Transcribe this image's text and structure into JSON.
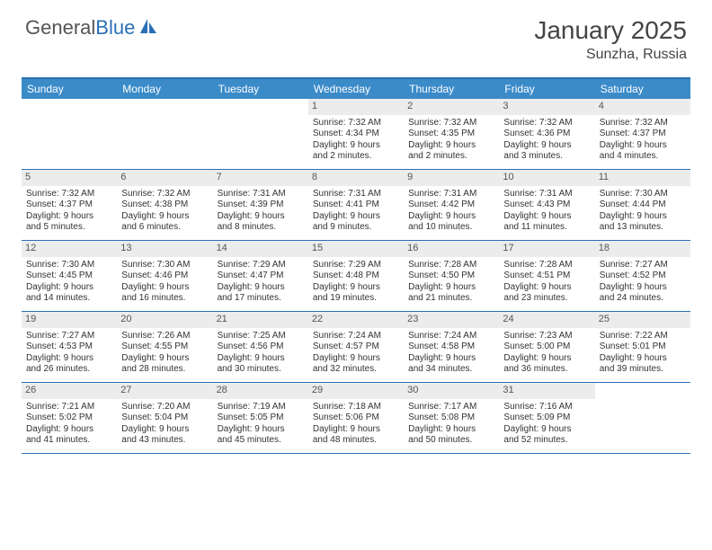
{
  "logo": {
    "word1": "General",
    "word2": "Blue"
  },
  "title": "January 2025",
  "location": "Sunzha, Russia",
  "colors": {
    "header_bg": "#3b8bc9",
    "header_border": "#2a6fb5",
    "cell_num_bg": "#ececec",
    "text": "#333333",
    "logo_gray": "#555555",
    "logo_blue": "#2a6fb5"
  },
  "day_names": [
    "Sunday",
    "Monday",
    "Tuesday",
    "Wednesday",
    "Thursday",
    "Friday",
    "Saturday"
  ],
  "weeks": [
    [
      {
        "n": "",
        "sr": "",
        "ss": "",
        "dl1": "",
        "dl2": ""
      },
      {
        "n": "",
        "sr": "",
        "ss": "",
        "dl1": "",
        "dl2": ""
      },
      {
        "n": "",
        "sr": "",
        "ss": "",
        "dl1": "",
        "dl2": ""
      },
      {
        "n": "1",
        "sr": "Sunrise: 7:32 AM",
        "ss": "Sunset: 4:34 PM",
        "dl1": "Daylight: 9 hours",
        "dl2": "and 2 minutes."
      },
      {
        "n": "2",
        "sr": "Sunrise: 7:32 AM",
        "ss": "Sunset: 4:35 PM",
        "dl1": "Daylight: 9 hours",
        "dl2": "and 2 minutes."
      },
      {
        "n": "3",
        "sr": "Sunrise: 7:32 AM",
        "ss": "Sunset: 4:36 PM",
        "dl1": "Daylight: 9 hours",
        "dl2": "and 3 minutes."
      },
      {
        "n": "4",
        "sr": "Sunrise: 7:32 AM",
        "ss": "Sunset: 4:37 PM",
        "dl1": "Daylight: 9 hours",
        "dl2": "and 4 minutes."
      }
    ],
    [
      {
        "n": "5",
        "sr": "Sunrise: 7:32 AM",
        "ss": "Sunset: 4:37 PM",
        "dl1": "Daylight: 9 hours",
        "dl2": "and 5 minutes."
      },
      {
        "n": "6",
        "sr": "Sunrise: 7:32 AM",
        "ss": "Sunset: 4:38 PM",
        "dl1": "Daylight: 9 hours",
        "dl2": "and 6 minutes."
      },
      {
        "n": "7",
        "sr": "Sunrise: 7:31 AM",
        "ss": "Sunset: 4:39 PM",
        "dl1": "Daylight: 9 hours",
        "dl2": "and 8 minutes."
      },
      {
        "n": "8",
        "sr": "Sunrise: 7:31 AM",
        "ss": "Sunset: 4:41 PM",
        "dl1": "Daylight: 9 hours",
        "dl2": "and 9 minutes."
      },
      {
        "n": "9",
        "sr": "Sunrise: 7:31 AM",
        "ss": "Sunset: 4:42 PM",
        "dl1": "Daylight: 9 hours",
        "dl2": "and 10 minutes."
      },
      {
        "n": "10",
        "sr": "Sunrise: 7:31 AM",
        "ss": "Sunset: 4:43 PM",
        "dl1": "Daylight: 9 hours",
        "dl2": "and 11 minutes."
      },
      {
        "n": "11",
        "sr": "Sunrise: 7:30 AM",
        "ss": "Sunset: 4:44 PM",
        "dl1": "Daylight: 9 hours",
        "dl2": "and 13 minutes."
      }
    ],
    [
      {
        "n": "12",
        "sr": "Sunrise: 7:30 AM",
        "ss": "Sunset: 4:45 PM",
        "dl1": "Daylight: 9 hours",
        "dl2": "and 14 minutes."
      },
      {
        "n": "13",
        "sr": "Sunrise: 7:30 AM",
        "ss": "Sunset: 4:46 PM",
        "dl1": "Daylight: 9 hours",
        "dl2": "and 16 minutes."
      },
      {
        "n": "14",
        "sr": "Sunrise: 7:29 AM",
        "ss": "Sunset: 4:47 PM",
        "dl1": "Daylight: 9 hours",
        "dl2": "and 17 minutes."
      },
      {
        "n": "15",
        "sr": "Sunrise: 7:29 AM",
        "ss": "Sunset: 4:48 PM",
        "dl1": "Daylight: 9 hours",
        "dl2": "and 19 minutes."
      },
      {
        "n": "16",
        "sr": "Sunrise: 7:28 AM",
        "ss": "Sunset: 4:50 PM",
        "dl1": "Daylight: 9 hours",
        "dl2": "and 21 minutes."
      },
      {
        "n": "17",
        "sr": "Sunrise: 7:28 AM",
        "ss": "Sunset: 4:51 PM",
        "dl1": "Daylight: 9 hours",
        "dl2": "and 23 minutes."
      },
      {
        "n": "18",
        "sr": "Sunrise: 7:27 AM",
        "ss": "Sunset: 4:52 PM",
        "dl1": "Daylight: 9 hours",
        "dl2": "and 24 minutes."
      }
    ],
    [
      {
        "n": "19",
        "sr": "Sunrise: 7:27 AM",
        "ss": "Sunset: 4:53 PM",
        "dl1": "Daylight: 9 hours",
        "dl2": "and 26 minutes."
      },
      {
        "n": "20",
        "sr": "Sunrise: 7:26 AM",
        "ss": "Sunset: 4:55 PM",
        "dl1": "Daylight: 9 hours",
        "dl2": "and 28 minutes."
      },
      {
        "n": "21",
        "sr": "Sunrise: 7:25 AM",
        "ss": "Sunset: 4:56 PM",
        "dl1": "Daylight: 9 hours",
        "dl2": "and 30 minutes."
      },
      {
        "n": "22",
        "sr": "Sunrise: 7:24 AM",
        "ss": "Sunset: 4:57 PM",
        "dl1": "Daylight: 9 hours",
        "dl2": "and 32 minutes."
      },
      {
        "n": "23",
        "sr": "Sunrise: 7:24 AM",
        "ss": "Sunset: 4:58 PM",
        "dl1": "Daylight: 9 hours",
        "dl2": "and 34 minutes."
      },
      {
        "n": "24",
        "sr": "Sunrise: 7:23 AM",
        "ss": "Sunset: 5:00 PM",
        "dl1": "Daylight: 9 hours",
        "dl2": "and 36 minutes."
      },
      {
        "n": "25",
        "sr": "Sunrise: 7:22 AM",
        "ss": "Sunset: 5:01 PM",
        "dl1": "Daylight: 9 hours",
        "dl2": "and 39 minutes."
      }
    ],
    [
      {
        "n": "26",
        "sr": "Sunrise: 7:21 AM",
        "ss": "Sunset: 5:02 PM",
        "dl1": "Daylight: 9 hours",
        "dl2": "and 41 minutes."
      },
      {
        "n": "27",
        "sr": "Sunrise: 7:20 AM",
        "ss": "Sunset: 5:04 PM",
        "dl1": "Daylight: 9 hours",
        "dl2": "and 43 minutes."
      },
      {
        "n": "28",
        "sr": "Sunrise: 7:19 AM",
        "ss": "Sunset: 5:05 PM",
        "dl1": "Daylight: 9 hours",
        "dl2": "and 45 minutes."
      },
      {
        "n": "29",
        "sr": "Sunrise: 7:18 AM",
        "ss": "Sunset: 5:06 PM",
        "dl1": "Daylight: 9 hours",
        "dl2": "and 48 minutes."
      },
      {
        "n": "30",
        "sr": "Sunrise: 7:17 AM",
        "ss": "Sunset: 5:08 PM",
        "dl1": "Daylight: 9 hours",
        "dl2": "and 50 minutes."
      },
      {
        "n": "31",
        "sr": "Sunrise: 7:16 AM",
        "ss": "Sunset: 5:09 PM",
        "dl1": "Daylight: 9 hours",
        "dl2": "and 52 minutes."
      },
      {
        "n": "",
        "sr": "",
        "ss": "",
        "dl1": "",
        "dl2": ""
      }
    ]
  ]
}
